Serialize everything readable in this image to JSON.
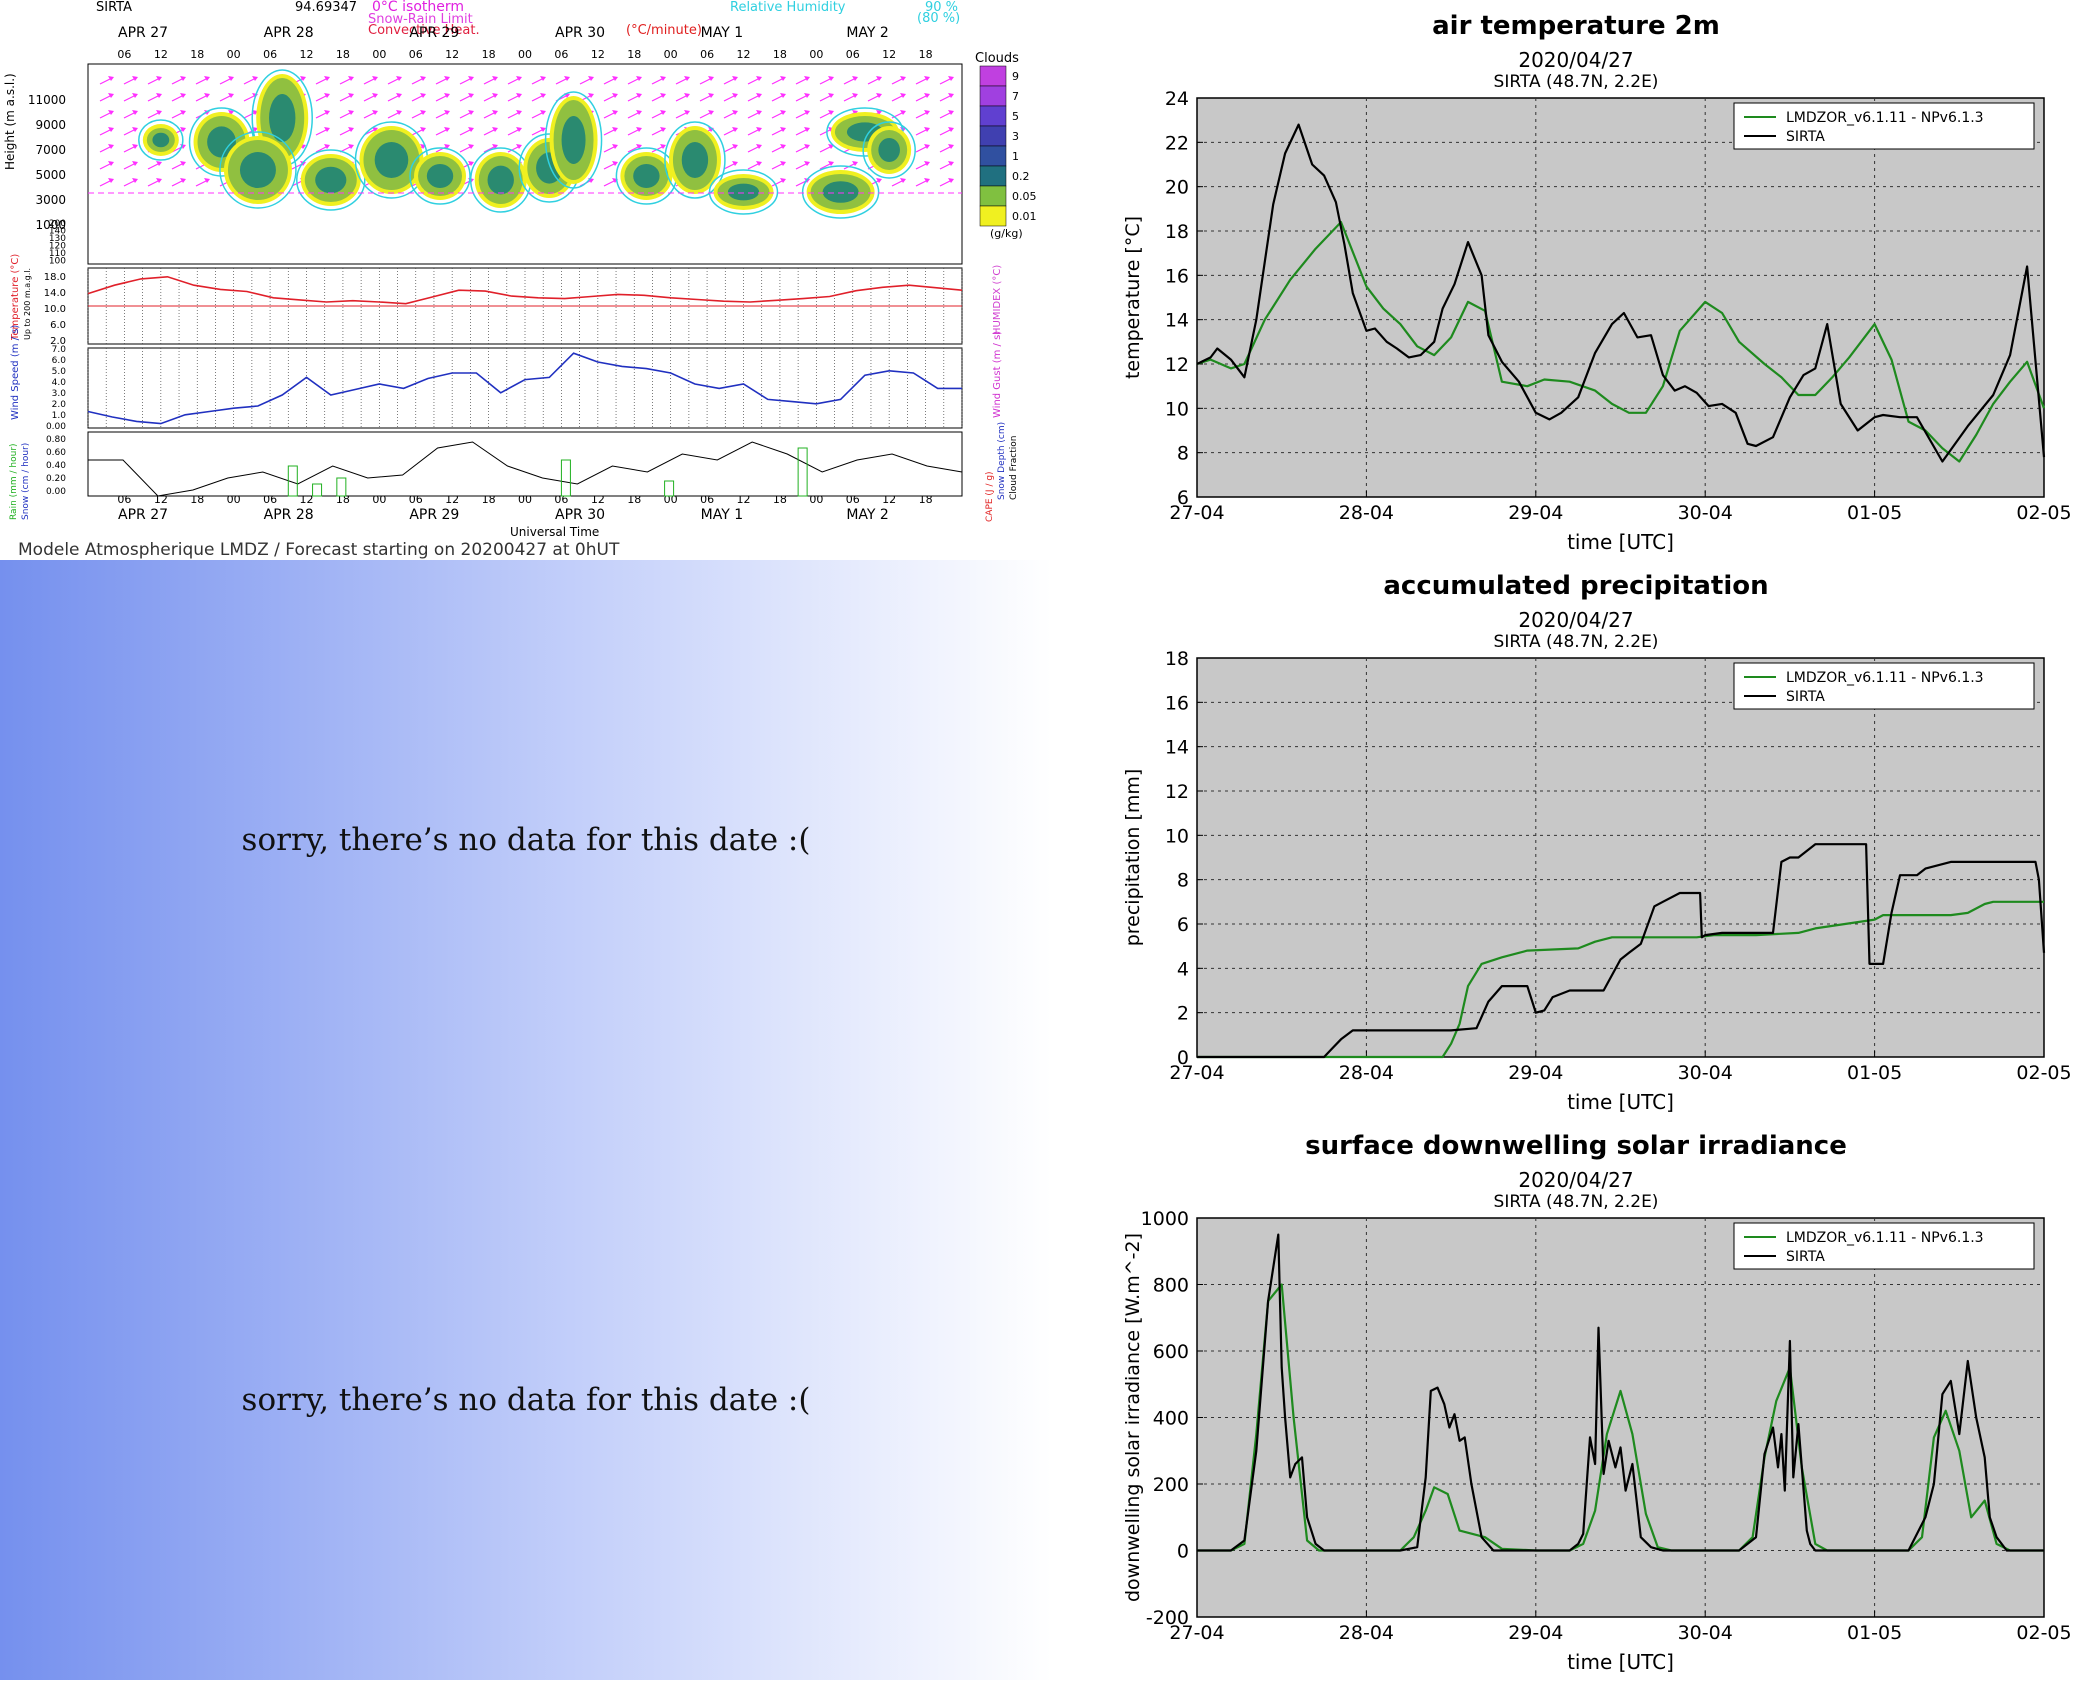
{
  "meteogram": {
    "station": "SIRTA",
    "elevation_readout": "94.69347",
    "legend": {
      "isotherm": "0°C isotherm",
      "snow_rain": "Snow-Rain Limit",
      "convective": "Convective Heat.",
      "convective_unit": "(°C/minute)",
      "rh_title": "Relative Humidity",
      "rh_90": "90 %",
      "rh_80": "(80 %)",
      "clouds": "Clouds",
      "cloud_levels": [
        "9",
        "7",
        "5",
        "3",
        "1",
        "0.2",
        "0.05",
        "0.01"
      ],
      "cloud_unit": "(g/kg)"
    },
    "days": [
      "APR 27",
      "APR 28",
      "APR 29",
      "APR 30",
      "MAY 1",
      "MAY 2"
    ],
    "hours": [
      "06",
      "12",
      "18",
      "00"
    ],
    "height_label": "Height (m a.s.l.)",
    "height_ticks": [
      "11000",
      "9000",
      "7000",
      "5000",
      "3000",
      "1000"
    ],
    "height_ticks_low": [
      "200",
      "140",
      "130",
      "120",
      "110",
      "100"
    ],
    "temp_label": "Temperature (°C)",
    "temp_sub": "Up to 200 m.a.g.l.",
    "temp_ticks": [
      "18.0",
      "14.0",
      "10.0",
      "6.0",
      "2.0"
    ],
    "humidex_label": "HUMIDEX (°C)",
    "wind_label": "Wind Speed (m / s)",
    "gust_label": "Wind Gust (m / s)",
    "wind_ticks": [
      "7.0",
      "6.0",
      "5.0",
      "4.0",
      "3.0",
      "2.0",
      "1.0",
      "0.00"
    ],
    "rain_label": "Rain (mm / hour)",
    "snow_label": "Snow (cm / hour)",
    "precip_ticks": [
      "0.80",
      "0.60",
      "0.40",
      "0.20",
      "0.00"
    ],
    "cape_label": "CAPE (J / g)",
    "snowdepth_label": "Snow Depth (cm)",
    "cloudfrac_label": "Cloud Fraction",
    "xaxis_label": "Universal Time",
    "footer": "Modele Atmospherique LMDZ / Forecast starting on 20200427 at 0hUT",
    "colors": {
      "temperature": "#e0202a",
      "humidex": "#d040d0",
      "wind": "#2030c0",
      "gust": "#d030d0",
      "rain": "#20b020",
      "cape": "#e02020",
      "cloudfrac": "#000000",
      "rh": "#30d0e0",
      "arrows": "#ff30ff"
    }
  },
  "nodata": {
    "message_1": "sorry, there’s no data for this date  :(",
    "message_2": "sorry, there’s no data for this date  :("
  },
  "chart_data": [
    {
      "type": "line",
      "title": "air temperature 2m",
      "subtitle": "2020/04/27",
      "subtitle2": "SIRTA (48.7N, 2.2E)",
      "xlabel": "time [UTC]",
      "ylabel": "temperature [°C]",
      "xticks": [
        "27-04",
        "28-04",
        "29-04",
        "30-04",
        "01-05",
        "02-05"
      ],
      "xlim": [
        0,
        5
      ],
      "ylim": [
        6,
        24
      ],
      "yticks": [
        6,
        8,
        10,
        12,
        14,
        16,
        18,
        20,
        22,
        24
      ],
      "grid": true,
      "legend_position": "top-right",
      "series": [
        {
          "name": "LMDZOR_v6.1.11 - NPv6.1.3",
          "color": "#1e8a1e",
          "x": [
            0,
            0.08,
            0.2,
            0.28,
            0.4,
            0.55,
            0.7,
            0.85,
            1.0,
            1.1,
            1.2,
            1.3,
            1.4,
            1.5,
            1.6,
            1.7,
            1.8,
            1.95,
            2.05,
            2.2,
            2.35,
            2.45,
            2.55,
            2.65,
            2.75,
            2.85,
            3.0,
            3.1,
            3.2,
            3.35,
            3.45,
            3.55,
            3.65,
            3.75,
            3.85,
            4.0,
            4.1,
            4.2,
            4.3,
            4.4,
            4.5,
            4.6,
            4.7,
            4.8,
            4.9,
            5.0
          ],
          "y": [
            12.0,
            12.2,
            11.8,
            12.0,
            14.0,
            15.8,
            17.2,
            18.4,
            15.5,
            14.5,
            13.8,
            12.8,
            12.4,
            13.2,
            14.8,
            14.4,
            11.2,
            11.0,
            11.3,
            11.2,
            10.8,
            10.2,
            9.8,
            9.8,
            11.0,
            13.5,
            14.8,
            14.3,
            13.0,
            12.0,
            11.4,
            10.6,
            10.6,
            11.4,
            12.3,
            13.8,
            12.2,
            9.4,
            9.0,
            8.2,
            7.6,
            8.8,
            10.2,
            11.2,
            12.1,
            10.0
          ]
        },
        {
          "name": "SIRTA",
          "color": "#000000",
          "x": [
            0,
            0.08,
            0.12,
            0.2,
            0.28,
            0.35,
            0.45,
            0.52,
            0.6,
            0.68,
            0.75,
            0.82,
            0.87,
            0.92,
            1.0,
            1.05,
            1.12,
            1.18,
            1.25,
            1.32,
            1.4,
            1.45,
            1.52,
            1.6,
            1.68,
            1.72,
            1.8,
            1.9,
            2.0,
            2.08,
            2.15,
            2.25,
            2.35,
            2.45,
            2.52,
            2.6,
            2.68,
            2.75,
            2.82,
            2.88,
            2.95,
            3.02,
            3.1,
            3.18,
            3.25,
            3.3,
            3.4,
            3.5,
            3.58,
            3.65,
            3.72,
            3.8,
            3.9,
            4.0,
            4.05,
            4.15,
            4.25,
            4.4,
            4.55,
            4.7,
            4.8,
            4.9,
            5.0
          ],
          "y": [
            12.0,
            12.3,
            12.7,
            12.2,
            11.4,
            14.0,
            19.2,
            21.5,
            22.8,
            21.0,
            20.5,
            19.3,
            17.4,
            15.2,
            13.5,
            13.6,
            13.0,
            12.7,
            12.3,
            12.4,
            13.0,
            14.5,
            15.6,
            17.5,
            16.0,
            13.3,
            12.1,
            11.2,
            9.8,
            9.5,
            9.8,
            10.5,
            12.5,
            13.8,
            14.3,
            13.2,
            13.3,
            11.5,
            10.8,
            11.0,
            10.7,
            10.1,
            10.2,
            9.8,
            8.4,
            8.3,
            8.7,
            10.5,
            11.5,
            11.8,
            13.8,
            10.2,
            9.0,
            9.6,
            9.7,
            9.6,
            9.6,
            7.6,
            9.2,
            10.6,
            12.4,
            16.4,
            7.8
          ]
        }
      ]
    },
    {
      "type": "line",
      "title": "accumulated precipitation",
      "subtitle": "2020/04/27",
      "subtitle2": "SIRTA (48.7N, 2.2E)",
      "xlabel": "time [UTC]",
      "ylabel": "precipitation [mm]",
      "xticks": [
        "27-04",
        "28-04",
        "29-04",
        "30-04",
        "01-05",
        "02-05"
      ],
      "xlim": [
        0,
        5
      ],
      "ylim": [
        0,
        18
      ],
      "yticks": [
        0,
        2,
        4,
        6,
        8,
        10,
        12,
        14,
        16,
        18
      ],
      "grid": true,
      "legend_position": "top-right",
      "series": [
        {
          "name": "LMDZOR_v6.1.11 - NPv6.1.3",
          "color": "#1e8a1e",
          "x": [
            0,
            1.45,
            1.5,
            1.55,
            1.6,
            1.68,
            1.8,
            1.95,
            2.25,
            2.35,
            2.45,
            2.55,
            2.95,
            3.05,
            3.3,
            3.55,
            3.65,
            4.0,
            4.05,
            4.35,
            4.45,
            4.55,
            4.65,
            4.7,
            5.0
          ],
          "y": [
            0,
            0,
            0.6,
            1.5,
            3.2,
            4.2,
            4.5,
            4.8,
            4.9,
            5.2,
            5.4,
            5.4,
            5.4,
            5.5,
            5.5,
            5.6,
            5.8,
            6.2,
            6.4,
            6.4,
            6.4,
            6.5,
            6.9,
            7.0,
            7.0
          ]
        },
        {
          "name": "SIRTA",
          "color": "#000000",
          "x": [
            0,
            0.75,
            0.8,
            0.85,
            0.92,
            1.0,
            1.5,
            1.65,
            1.72,
            1.8,
            1.95,
            2.0,
            2.05,
            2.1,
            2.2,
            2.4,
            2.5,
            2.55,
            2.62,
            2.7,
            2.75,
            2.85,
            2.9,
            2.97,
            2.98,
            3.0,
            3.1,
            3.15,
            3.4,
            3.45,
            3.5,
            3.55,
            3.65,
            3.8,
            3.95,
            3.97,
            4.05,
            4.1,
            4.15,
            4.25,
            4.3,
            4.45,
            4.95,
            4.97,
            5.0
          ],
          "y": [
            0,
            0,
            0.4,
            0.8,
            1.2,
            1.2,
            1.2,
            1.3,
            2.5,
            3.2,
            3.2,
            2.0,
            2.1,
            2.7,
            3.0,
            3.0,
            4.4,
            4.7,
            5.1,
            6.8,
            7.0,
            7.4,
            7.4,
            7.4,
            5.4,
            5.5,
            5.6,
            5.6,
            5.6,
            8.8,
            9.0,
            9.0,
            9.6,
            9.6,
            9.6,
            4.2,
            4.2,
            6.5,
            8.2,
            8.2,
            8.5,
            8.8,
            8.8,
            8.0,
            4.7
          ]
        }
      ]
    },
    {
      "type": "line",
      "title": "surface downwelling solar irradiance",
      "subtitle": "2020/04/27",
      "subtitle2": "SIRTA (48.7N, 2.2E)",
      "xlabel": "time [UTC]",
      "ylabel": "downwelling solar irradiance [W.m^-2]",
      "xticks": [
        "27-04",
        "28-04",
        "29-04",
        "30-04",
        "01-05",
        "02-05"
      ],
      "xlim": [
        0,
        5
      ],
      "ylim": [
        -200,
        1000
      ],
      "yticks": [
        -200,
        0,
        200,
        400,
        600,
        800,
        1000
      ],
      "grid": true,
      "legend_position": "top-right",
      "series": [
        {
          "name": "LMDZOR_v6.1.11 - NPv6.1.3",
          "color": "#1e8a1e",
          "x": [
            0,
            0.2,
            0.28,
            0.35,
            0.42,
            0.5,
            0.57,
            0.65,
            0.72,
            0.8,
            1.0,
            1.2,
            1.28,
            1.35,
            1.4,
            1.48,
            1.55,
            1.7,
            1.8,
            2.0,
            2.2,
            2.28,
            2.35,
            2.42,
            2.5,
            2.57,
            2.65,
            2.72,
            2.8,
            3.0,
            3.2,
            3.28,
            3.35,
            3.42,
            3.5,
            3.57,
            3.65,
            3.72,
            3.8,
            4.0,
            4.2,
            4.28,
            4.35,
            4.42,
            4.5,
            4.57,
            4.65,
            4.72,
            4.8,
            5.0
          ],
          "y": [
            0,
            0,
            20,
            350,
            750,
            800,
            400,
            30,
            0,
            0,
            0,
            0,
            40,
            120,
            190,
            170,
            60,
            40,
            5,
            0,
            0,
            20,
            120,
            350,
            480,
            350,
            110,
            10,
            0,
            0,
            0,
            40,
            280,
            450,
            550,
            250,
            20,
            0,
            0,
            0,
            0,
            40,
            340,
            420,
            300,
            100,
            150,
            20,
            0,
            0
          ]
        },
        {
          "name": "SIRTA",
          "color": "#000000",
          "x": [
            0,
            0.2,
            0.28,
            0.35,
            0.42,
            0.48,
            0.5,
            0.52,
            0.55,
            0.58,
            0.62,
            0.65,
            0.7,
            0.75,
            0.8,
            1.0,
            1.2,
            1.3,
            1.35,
            1.38,
            1.42,
            1.46,
            1.49,
            1.52,
            1.55,
            1.58,
            1.62,
            1.68,
            1.75,
            1.8,
            2.0,
            2.2,
            2.25,
            2.28,
            2.32,
            2.35,
            2.37,
            2.4,
            2.43,
            2.47,
            2.5,
            2.53,
            2.57,
            2.62,
            2.68,
            2.75,
            3.0,
            3.2,
            3.3,
            3.35,
            3.4,
            3.43,
            3.45,
            3.47,
            3.5,
            3.52,
            3.55,
            3.6,
            3.62,
            3.65,
            3.7,
            3.75,
            4.0,
            4.2,
            4.3,
            4.35,
            4.4,
            4.45,
            4.5,
            4.55,
            4.6,
            4.65,
            4.68,
            4.72,
            4.78,
            4.85,
            5.0
          ],
          "y": [
            0,
            0,
            30,
            300,
            750,
            950,
            550,
            400,
            220,
            260,
            280,
            100,
            20,
            0,
            0,
            0,
            0,
            10,
            220,
            480,
            490,
            440,
            370,
            410,
            330,
            340,
            200,
            40,
            0,
            0,
            0,
            0,
            20,
            50,
            340,
            260,
            670,
            230,
            330,
            250,
            310,
            180,
            260,
            40,
            10,
            0,
            0,
            0,
            40,
            290,
            370,
            250,
            350,
            180,
            630,
            220,
            380,
            60,
            20,
            0,
            0,
            0,
            0,
            0,
            100,
            200,
            470,
            510,
            350,
            570,
            400,
            280,
            100,
            40,
            0,
            0,
            0
          ]
        }
      ]
    }
  ]
}
